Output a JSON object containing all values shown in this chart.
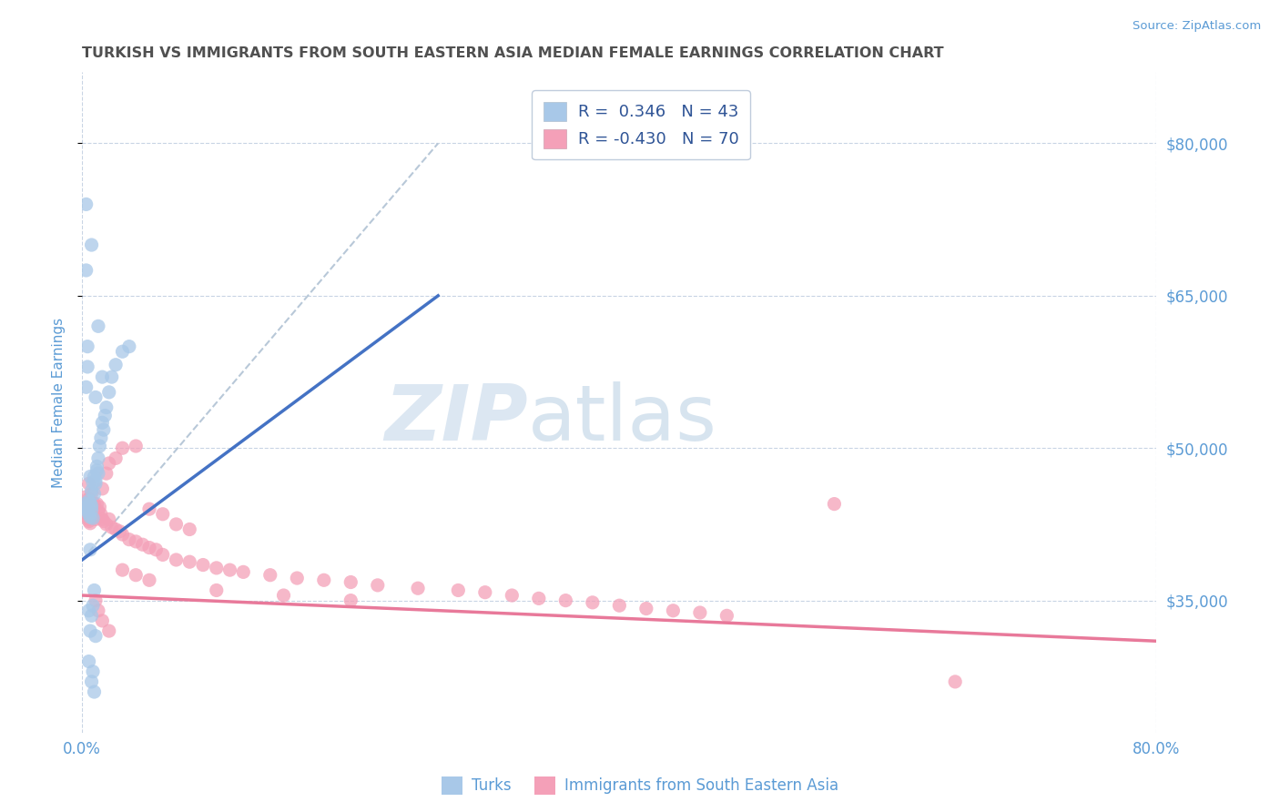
{
  "title": "TURKISH VS IMMIGRANTS FROM SOUTH EASTERN ASIA MEDIAN FEMALE EARNINGS CORRELATION CHART",
  "source": "Source: ZipAtlas.com",
  "ylabel": "Median Female Earnings",
  "xlim": [
    0.0,
    0.8
  ],
  "ylim": [
    22000,
    87000
  ],
  "ytick_values": [
    35000,
    50000,
    65000,
    80000
  ],
  "yticklabels": [
    "$35,000",
    "$50,000",
    "$65,000",
    "$80,000"
  ],
  "color_blue": "#A8C8E8",
  "color_pink": "#F4A0B8",
  "color_blue_line": "#4472C4",
  "color_pink_line": "#E8799A",
  "color_dashed": "#B8C8D8",
  "watermark_zip": "ZIP",
  "watermark_atlas": "atlas",
  "watermark_color_zip": "#C8D8E8",
  "watermark_color_atlas": "#A8C0D8",
  "title_color": "#505050",
  "axis_color": "#5B9BD5",
  "legend_text_color": "#2F5496",
  "blue_line_x": [
    0.0,
    0.265
  ],
  "blue_line_y": [
    39000,
    65000
  ],
  "pink_line_x": [
    0.0,
    0.8
  ],
  "pink_line_y": [
    35500,
    31000
  ],
  "dashed_line_x": [
    0.0,
    0.265
  ],
  "dashed_line_y": [
    39000,
    80000
  ],
  "turks_scatter": [
    [
      0.002,
      44500
    ],
    [
      0.003,
      44200
    ],
    [
      0.004,
      43800
    ],
    [
      0.004,
      44000
    ],
    [
      0.005,
      43500
    ],
    [
      0.005,
      44800
    ],
    [
      0.006,
      47200
    ],
    [
      0.006,
      44600
    ],
    [
      0.006,
      43200
    ],
    [
      0.007,
      43900
    ],
    [
      0.007,
      45800
    ],
    [
      0.007,
      44300
    ],
    [
      0.008,
      43100
    ],
    [
      0.008,
      46600
    ],
    [
      0.009,
      45500
    ],
    [
      0.009,
      47200
    ],
    [
      0.01,
      46800
    ],
    [
      0.01,
      46500
    ],
    [
      0.011,
      47800
    ],
    [
      0.011,
      48200
    ],
    [
      0.012,
      47500
    ],
    [
      0.012,
      49000
    ],
    [
      0.013,
      50200
    ],
    [
      0.014,
      51000
    ],
    [
      0.015,
      52500
    ],
    [
      0.016,
      51800
    ],
    [
      0.017,
      53200
    ],
    [
      0.018,
      54000
    ],
    [
      0.02,
      55500
    ],
    [
      0.022,
      57000
    ],
    [
      0.025,
      58200
    ],
    [
      0.03,
      59500
    ],
    [
      0.035,
      60000
    ],
    [
      0.005,
      34000
    ],
    [
      0.006,
      32000
    ],
    [
      0.007,
      33500
    ],
    [
      0.008,
      34500
    ],
    [
      0.009,
      36000
    ],
    [
      0.005,
      29000
    ],
    [
      0.01,
      31500
    ],
    [
      0.003,
      56000
    ],
    [
      0.004,
      58000
    ],
    [
      0.007,
      70000
    ],
    [
      0.01,
      55000
    ],
    [
      0.015,
      57000
    ],
    [
      0.004,
      60000
    ],
    [
      0.012,
      62000
    ],
    [
      0.003,
      67500
    ],
    [
      0.003,
      74000
    ],
    [
      0.006,
      40000
    ],
    [
      0.007,
      27000
    ],
    [
      0.008,
      28000
    ],
    [
      0.009,
      26000
    ]
  ],
  "sea_scatter": [
    [
      0.002,
      44500
    ],
    [
      0.003,
      43500
    ],
    [
      0.003,
      45200
    ],
    [
      0.004,
      43800
    ],
    [
      0.004,
      44500
    ],
    [
      0.005,
      43000
    ],
    [
      0.005,
      46500
    ],
    [
      0.005,
      42800
    ],
    [
      0.006,
      43200
    ],
    [
      0.006,
      42600
    ],
    [
      0.007,
      44000
    ],
    [
      0.007,
      43500
    ],
    [
      0.008,
      44200
    ],
    [
      0.008,
      43800
    ],
    [
      0.009,
      44500
    ],
    [
      0.009,
      43200
    ],
    [
      0.01,
      43000
    ],
    [
      0.011,
      44500
    ],
    [
      0.012,
      43800
    ],
    [
      0.013,
      44200
    ],
    [
      0.014,
      43500
    ],
    [
      0.015,
      43000
    ],
    [
      0.016,
      42800
    ],
    [
      0.018,
      42500
    ],
    [
      0.02,
      43000
    ],
    [
      0.022,
      42200
    ],
    [
      0.025,
      42000
    ],
    [
      0.028,
      41800
    ],
    [
      0.03,
      41500
    ],
    [
      0.035,
      41000
    ],
    [
      0.04,
      40800
    ],
    [
      0.045,
      40500
    ],
    [
      0.05,
      40200
    ],
    [
      0.055,
      40000
    ],
    [
      0.06,
      39500
    ],
    [
      0.07,
      39000
    ],
    [
      0.08,
      38800
    ],
    [
      0.09,
      38500
    ],
    [
      0.1,
      38200
    ],
    [
      0.11,
      38000
    ],
    [
      0.12,
      37800
    ],
    [
      0.14,
      37500
    ],
    [
      0.16,
      37200
    ],
    [
      0.18,
      37000
    ],
    [
      0.2,
      36800
    ],
    [
      0.22,
      36500
    ],
    [
      0.25,
      36200
    ],
    [
      0.28,
      36000
    ],
    [
      0.3,
      35800
    ],
    [
      0.32,
      35500
    ],
    [
      0.34,
      35200
    ],
    [
      0.36,
      35000
    ],
    [
      0.38,
      34800
    ],
    [
      0.4,
      34500
    ],
    [
      0.42,
      34200
    ],
    [
      0.44,
      34000
    ],
    [
      0.46,
      33800
    ],
    [
      0.48,
      33500
    ],
    [
      0.03,
      50000
    ],
    [
      0.04,
      50200
    ],
    [
      0.02,
      48500
    ],
    [
      0.025,
      49000
    ],
    [
      0.015,
      46000
    ],
    [
      0.018,
      47500
    ],
    [
      0.05,
      44000
    ],
    [
      0.06,
      43500
    ],
    [
      0.07,
      42500
    ],
    [
      0.08,
      42000
    ],
    [
      0.65,
      27000
    ],
    [
      0.01,
      35000
    ],
    [
      0.012,
      34000
    ],
    [
      0.015,
      33000
    ],
    [
      0.02,
      32000
    ],
    [
      0.03,
      38000
    ],
    [
      0.04,
      37500
    ],
    [
      0.05,
      37000
    ],
    [
      0.56,
      44500
    ],
    [
      0.1,
      36000
    ],
    [
      0.15,
      35500
    ],
    [
      0.2,
      35000
    ],
    [
      0.005,
      45000
    ],
    [
      0.006,
      44000
    ],
    [
      0.007,
      45500
    ]
  ]
}
